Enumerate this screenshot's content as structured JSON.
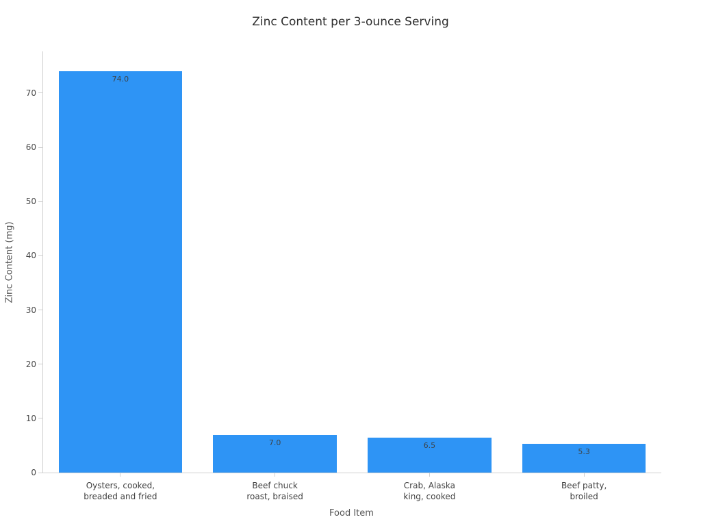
{
  "chart_data": {
    "type": "bar",
    "title": "Zinc Content per 3-ounce Serving",
    "xlabel": "Food Item",
    "ylabel": "Zinc Content (mg)",
    "categories": [
      "Oysters, cooked,\nbreaded and fried",
      "Beef chuck\nroast, braised",
      "Crab, Alaska\nking, cooked",
      "Beef patty,\nbroiled"
    ],
    "values": [
      74.0,
      7.0,
      6.5,
      5.3
    ],
    "value_labels": [
      "74.0",
      "7.0",
      "6.5",
      "5.3"
    ],
    "yticks": [
      0,
      10,
      20,
      30,
      40,
      50,
      60,
      70
    ],
    "ylim": [
      0,
      77.7
    ],
    "bar_color": "#2E94F5",
    "grid": false,
    "legend_position": "none"
  }
}
